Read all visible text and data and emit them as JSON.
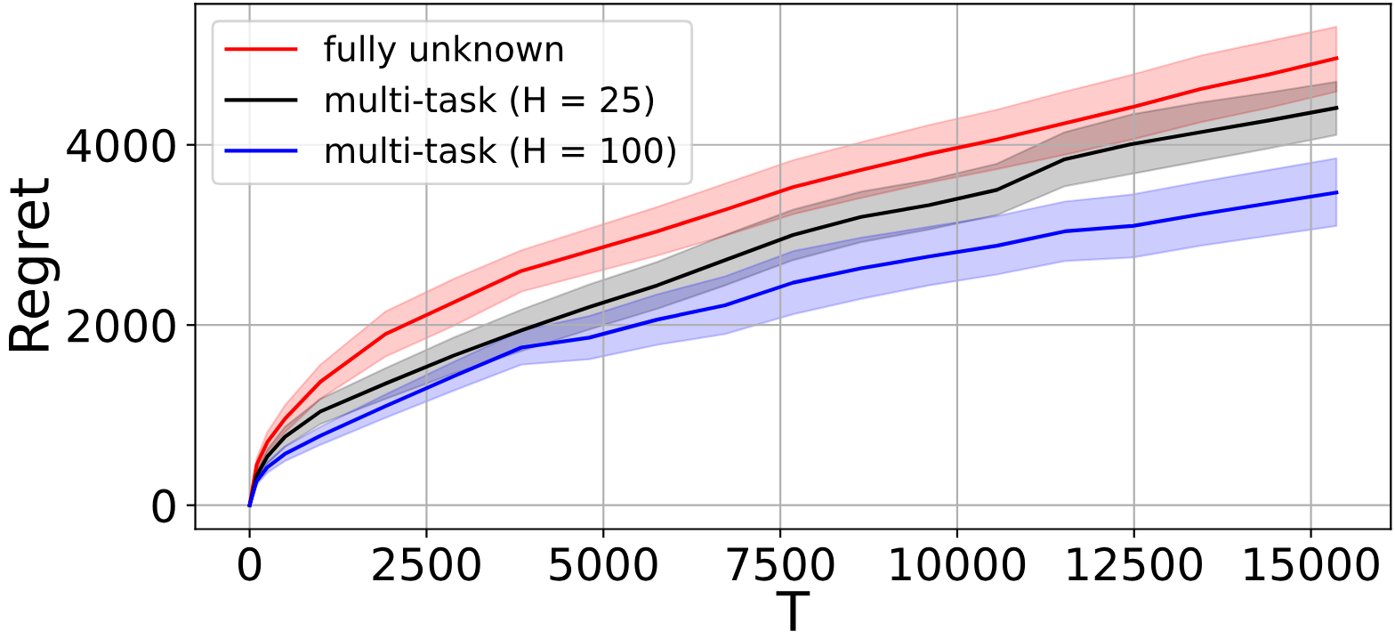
{
  "chart_data": {
    "type": "line",
    "xlabel": "T",
    "ylabel": "Regret",
    "x": [
      0,
      100,
      250,
      500,
      1000,
      1920,
      2880,
      3840,
      4800,
      5760,
      6720,
      7680,
      8640,
      9600,
      10560,
      11520,
      12480,
      13440,
      14400,
      15360
    ],
    "series": [
      {
        "name": "fully unknown",
        "color": "#ff0000",
        "values": [
          0,
          450,
          700,
          960,
          1370,
          1900,
          2250,
          2600,
          2820,
          3040,
          3280,
          3530,
          3720,
          3900,
          4060,
          4240,
          4420,
          4620,
          4780,
          4960
        ],
        "lower": [
          0,
          380,
          590,
          810,
          1180,
          1650,
          1990,
          2370,
          2570,
          2770,
          2990,
          3230,
          3410,
          3580,
          3730,
          3890,
          4060,
          4250,
          4410,
          4590
        ],
        "upper": [
          0,
          520,
          810,
          1110,
          1560,
          2150,
          2510,
          2830,
          3070,
          3310,
          3570,
          3830,
          4030,
          4220,
          4390,
          4590,
          4780,
          4990,
          5150,
          5310
        ]
      },
      {
        "name": "multi-task (H = 25)",
        "color": "#000000",
        "values": [
          0,
          330,
          540,
          760,
          1040,
          1350,
          1660,
          1940,
          2200,
          2440,
          2720,
          3000,
          3200,
          3330,
          3500,
          3840,
          4010,
          4140,
          4270,
          4410
        ],
        "lower": [
          0,
          280,
          460,
          650,
          900,
          1180,
          1460,
          1710,
          1950,
          2180,
          2440,
          2720,
          2920,
          3060,
          3220,
          3540,
          3680,
          3820,
          3960,
          4110
        ],
        "upper": [
          0,
          380,
          620,
          870,
          1180,
          1520,
          1860,
          2170,
          2450,
          2700,
          3000,
          3280,
          3480,
          3610,
          3790,
          4140,
          4340,
          4470,
          4580,
          4700
        ]
      },
      {
        "name": "multi-task (H = 100)",
        "color": "#0000ff",
        "values": [
          0,
          270,
          420,
          570,
          770,
          1100,
          1430,
          1750,
          1860,
          2060,
          2220,
          2470,
          2630,
          2760,
          2880,
          3040,
          3100,
          3230,
          3350,
          3470
        ],
        "lower": [
          0,
          230,
          360,
          490,
          670,
          970,
          1270,
          1560,
          1620,
          1780,
          1900,
          2120,
          2290,
          2440,
          2560,
          2710,
          2750,
          2880,
          2990,
          3100
        ],
        "upper": [
          0,
          310,
          480,
          650,
          870,
          1230,
          1590,
          1940,
          2100,
          2340,
          2540,
          2820,
          2970,
          3090,
          3210,
          3370,
          3450,
          3590,
          3720,
          3850
        ]
      }
    ],
    "xlim": [
      -768,
      16128
    ],
    "ylim": [
      -265,
      5565
    ],
    "xticks": [
      0,
      2500,
      5000,
      7500,
      10000,
      12500,
      15000
    ],
    "yticks": [
      0,
      2000,
      4000
    ],
    "grid": true,
    "legend": "top left"
  }
}
